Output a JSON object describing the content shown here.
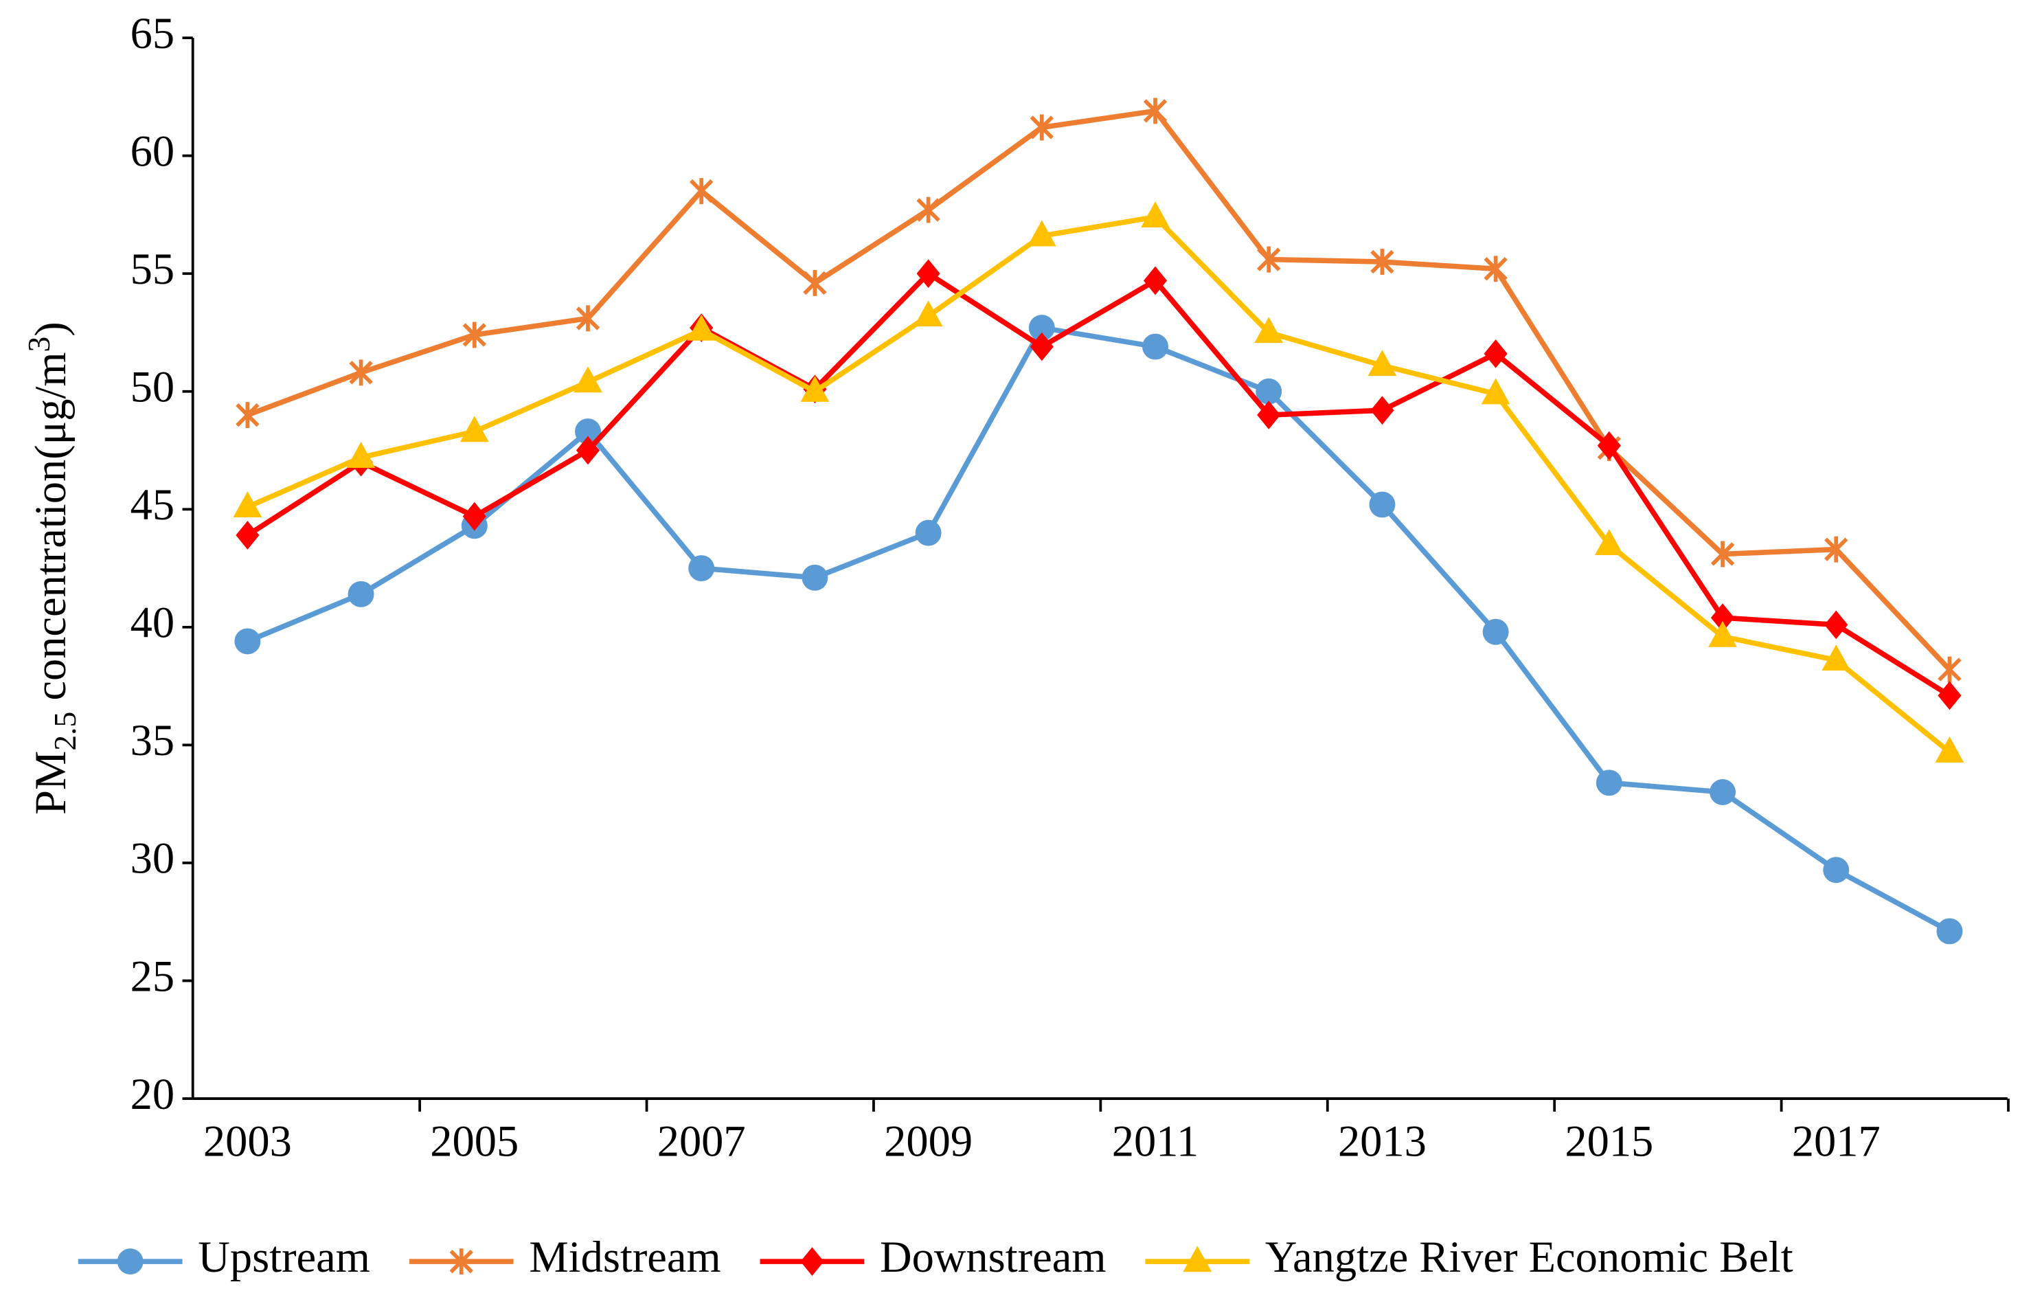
{
  "chart_data": {
    "type": "line",
    "y_label": {
      "prefix": "PM",
      "subscript": "2.5",
      "middle": " concentration(μg/m",
      "superscript": "3",
      "suffix": ")"
    },
    "categories": [
      "2003",
      null,
      "2005",
      null,
      "2007",
      null,
      "2009",
      null,
      "2011",
      null,
      "2013",
      null,
      "2015",
      null,
      "2017",
      null
    ],
    "ylim": [
      20,
      65
    ],
    "yticks": [
      20,
      25,
      30,
      35,
      40,
      45,
      50,
      55,
      60,
      65
    ],
    "legend": "bottom",
    "series": [
      {
        "name": "Upstream",
        "color": "#5b9bd5",
        "marker": "circle",
        "values": [
          39.4,
          41.4,
          44.3,
          48.3,
          42.5,
          42.1,
          44.0,
          52.7,
          51.9,
          50.0,
          45.2,
          39.8,
          33.4,
          33.0,
          29.7,
          27.1
        ]
      },
      {
        "name": "Midstream",
        "color": "#ed7d31",
        "marker": "star",
        "values": [
          49.0,
          50.8,
          52.4,
          53.1,
          58.5,
          54.6,
          57.7,
          61.2,
          61.9,
          55.6,
          55.5,
          55.2,
          47.6,
          43.1,
          43.3,
          38.2
        ]
      },
      {
        "name": "Downstream",
        "color": "#ff0000",
        "marker": "diamond",
        "values": [
          43.9,
          47.0,
          44.7,
          47.5,
          52.7,
          50.1,
          55.0,
          51.9,
          54.7,
          49.0,
          49.2,
          51.6,
          47.7,
          40.4,
          40.1,
          37.1
        ]
      },
      {
        "name": "Yangtze River Economic Belt",
        "color": "#ffc000",
        "marker": "triangle",
        "values": [
          45.1,
          47.2,
          48.3,
          50.4,
          52.6,
          50.0,
          53.2,
          56.6,
          57.4,
          52.5,
          51.1,
          49.9,
          43.5,
          39.6,
          38.6,
          34.7
        ]
      }
    ]
  }
}
